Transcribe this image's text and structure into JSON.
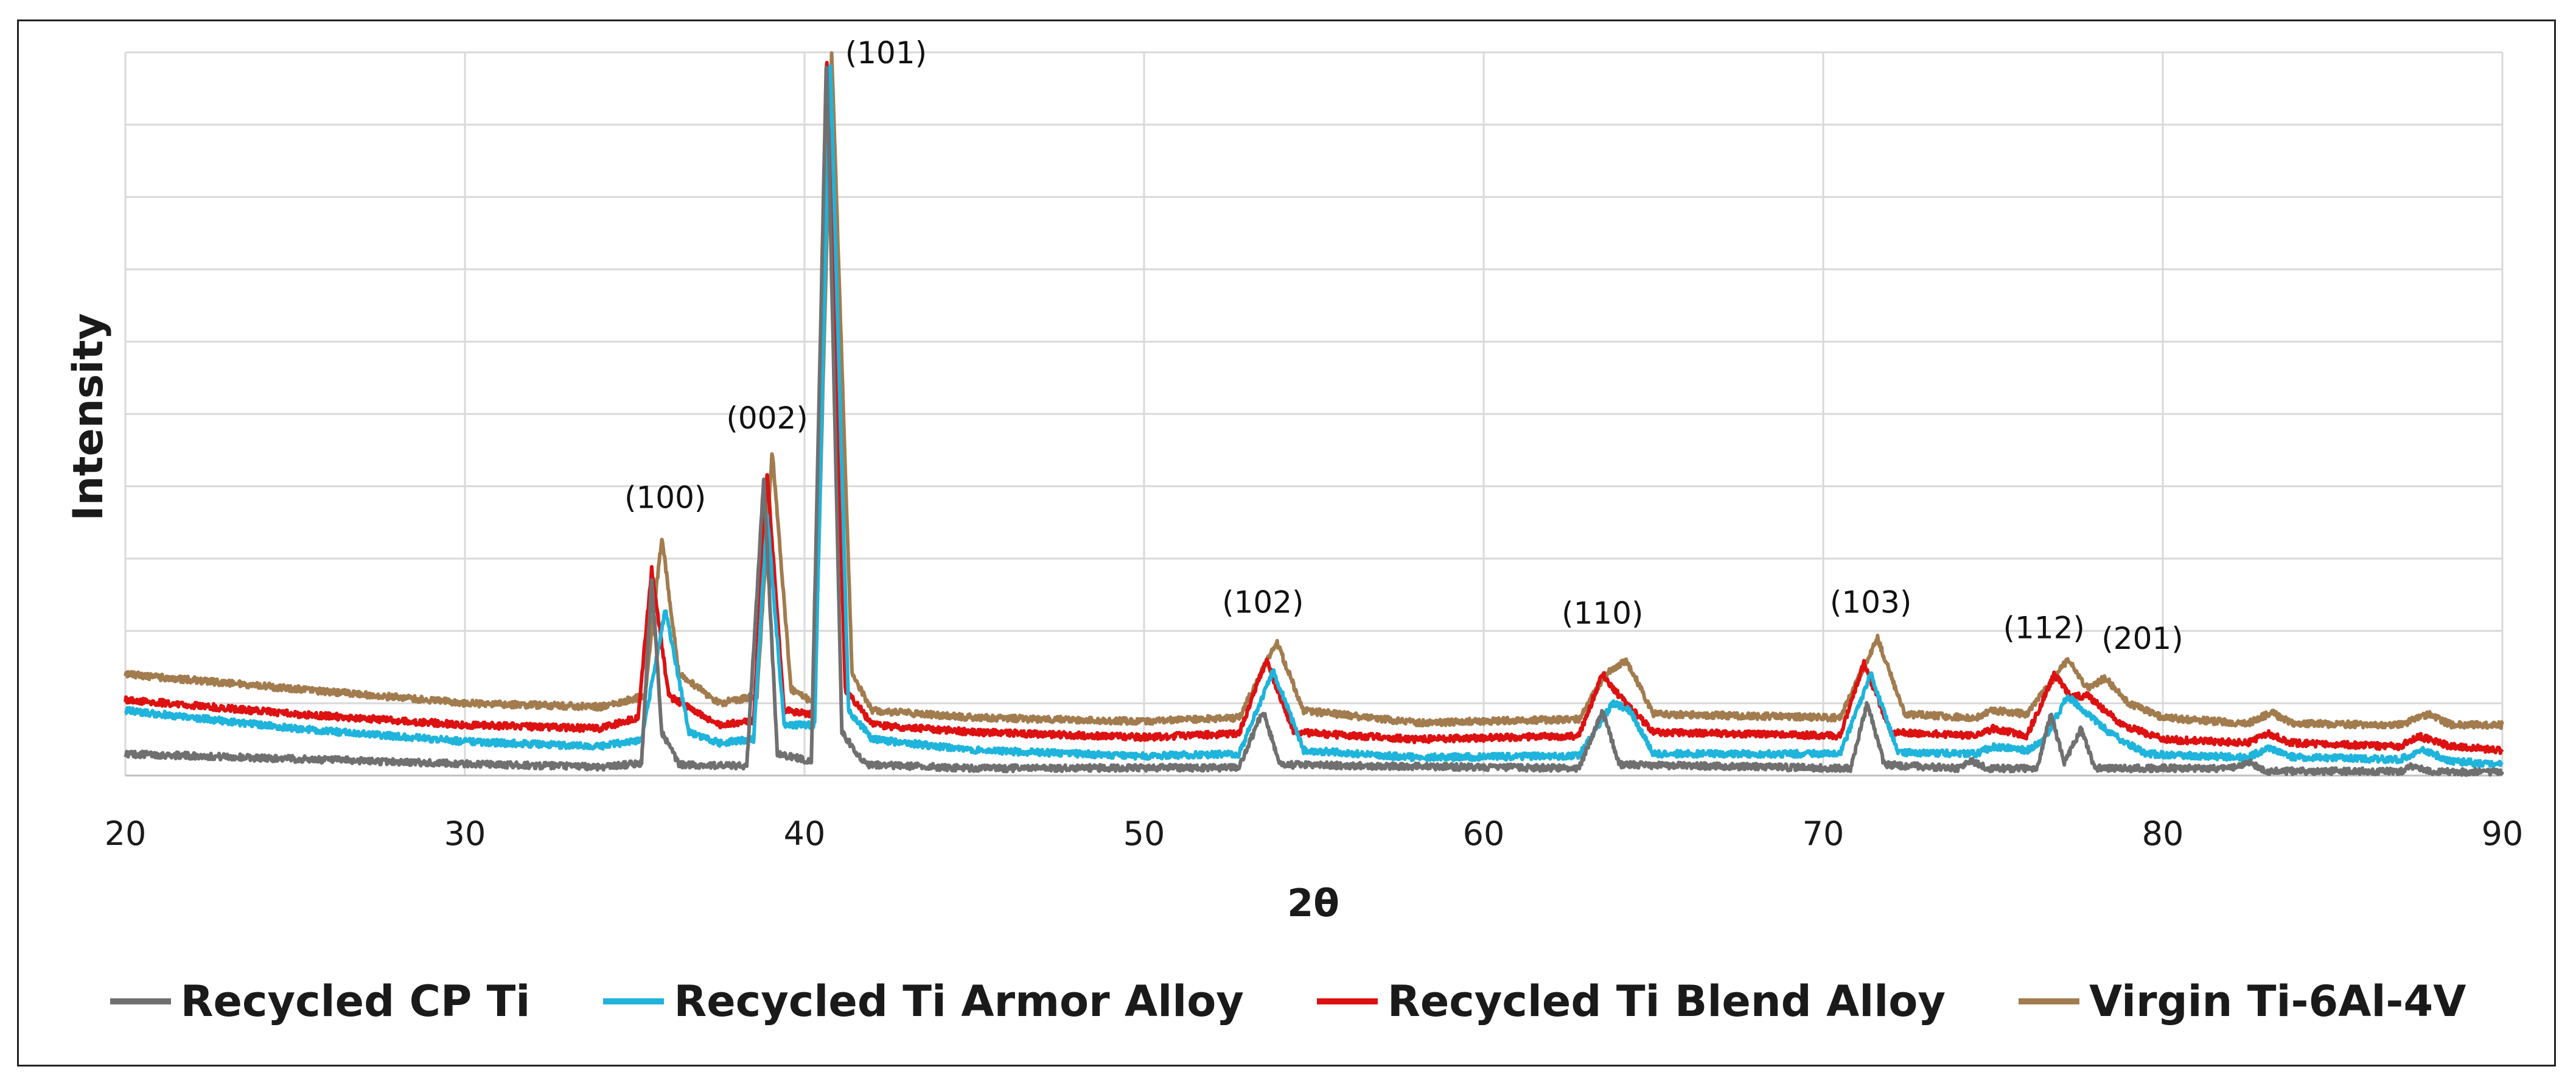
{
  "chart_data": {
    "type": "line",
    "title": "",
    "xlabel": "2θ",
    "ylabel": "Intensity",
    "xlim": [
      20,
      90
    ],
    "ylim": [
      0,
      100
    ],
    "x_ticks": [
      20,
      30,
      40,
      50,
      60,
      70,
      80,
      90
    ],
    "y_gridlines": 10,
    "grid": true,
    "legend_position": "bottom",
    "series": [
      {
        "name": "Recycled CP Ti",
        "color": "#707070",
        "points": [
          [
            20,
            3.0
          ],
          [
            25,
            2.3
          ],
          [
            30,
            1.6
          ],
          [
            34,
            1.2
          ],
          [
            35.2,
            1.7
          ],
          [
            35.5,
            27
          ],
          [
            35.8,
            6
          ],
          [
            36.3,
            1.5
          ],
          [
            38.3,
            1.3
          ],
          [
            38.8,
            41
          ],
          [
            39.2,
            3
          ],
          [
            40.2,
            2
          ],
          [
            40.65,
            100
          ],
          [
            41.1,
            6
          ],
          [
            41.8,
            1.5
          ],
          [
            45,
            1.0
          ],
          [
            52.8,
            1.1
          ],
          [
            53.5,
            9
          ],
          [
            54.0,
            1.5
          ],
          [
            62.8,
            1.0
          ],
          [
            63.5,
            9
          ],
          [
            64.0,
            1.5
          ],
          [
            70.8,
            1.0
          ],
          [
            71.3,
            10
          ],
          [
            71.8,
            1.5
          ],
          [
            74,
            1.0
          ],
          [
            74.4,
            2.0
          ],
          [
            74.8,
            1.0
          ],
          [
            76.3,
            1.0
          ],
          [
            76.7,
            8.5
          ],
          [
            77.1,
            1.8
          ],
          [
            77.6,
            6.5
          ],
          [
            78.0,
            1.0
          ],
          [
            82,
            1.0
          ],
          [
            82.6,
            1.8
          ],
          [
            83,
            0.6
          ],
          [
            87,
            0.6
          ],
          [
            87.4,
            1.4
          ],
          [
            88,
            0.5
          ],
          [
            90,
            0.5
          ]
        ]
      },
      {
        "name": "Recycled Ti Armor Alloy",
        "color": "#1eb4dc",
        "points": [
          [
            20,
            9
          ],
          [
            25,
            6.5
          ],
          [
            30,
            4.7
          ],
          [
            34,
            4.0
          ],
          [
            35.2,
            5.0
          ],
          [
            35.9,
            23
          ],
          [
            36.6,
            6
          ],
          [
            37.5,
            4.5
          ],
          [
            38.5,
            5
          ],
          [
            38.9,
            36
          ],
          [
            39.4,
            7
          ],
          [
            40.3,
            7
          ],
          [
            40.75,
            100
          ],
          [
            41.3,
            9
          ],
          [
            42,
            5
          ],
          [
            45,
            3.5
          ],
          [
            50,
            2.7
          ],
          [
            52.8,
            3.0
          ],
          [
            53.8,
            14.5
          ],
          [
            54.7,
            3.5
          ],
          [
            58,
            2.5
          ],
          [
            62.8,
            2.7
          ],
          [
            63.8,
            10
          ],
          [
            64.3,
            9
          ],
          [
            65.0,
            3
          ],
          [
            70.5,
            3
          ],
          [
            71.4,
            14
          ],
          [
            72.2,
            3.2
          ],
          [
            74.5,
            3.0
          ],
          [
            75,
            4
          ],
          [
            76,
            3.5
          ],
          [
            76.5,
            5
          ],
          [
            77.2,
            11
          ],
          [
            78.4,
            6
          ],
          [
            79.5,
            3
          ],
          [
            82.5,
            2.5
          ],
          [
            83.1,
            3.8
          ],
          [
            83.8,
            2.6
          ],
          [
            87,
            2.2
          ],
          [
            87.6,
            3.6
          ],
          [
            88.5,
            2.0
          ],
          [
            90,
            1.5
          ]
        ]
      },
      {
        "name": "Recycled Ti Blend Alloy",
        "color": "#dd1111",
        "points": [
          [
            20,
            10.5
          ],
          [
            25,
            8.5
          ],
          [
            30,
            7
          ],
          [
            34,
            6.5
          ],
          [
            35.1,
            8
          ],
          [
            35.5,
            28.5
          ],
          [
            36.0,
            11
          ],
          [
            37.5,
            7
          ],
          [
            38.5,
            7.5
          ],
          [
            38.9,
            42
          ],
          [
            39.4,
            9
          ],
          [
            40.3,
            8.5
          ],
          [
            40.65,
            100
          ],
          [
            41.2,
            12
          ],
          [
            42,
            7
          ],
          [
            45,
            6
          ],
          [
            50,
            5.3
          ],
          [
            52.8,
            5.8
          ],
          [
            53.6,
            16
          ],
          [
            54.4,
            6
          ],
          [
            58,
            5.0
          ],
          [
            62.8,
            5.5
          ],
          [
            63.5,
            14
          ],
          [
            64.0,
            11
          ],
          [
            65.0,
            6
          ],
          [
            70.5,
            5.5
          ],
          [
            71.2,
            15.5
          ],
          [
            72.0,
            6
          ],
          [
            74.5,
            5.5
          ],
          [
            75,
            6.5
          ],
          [
            76,
            5.5
          ],
          [
            76.8,
            14
          ],
          [
            77.3,
            11
          ],
          [
            77.8,
            11
          ],
          [
            78.8,
            7
          ],
          [
            80,
            5
          ],
          [
            82.5,
            4.5
          ],
          [
            83.1,
            5.8
          ],
          [
            83.8,
            4.5
          ],
          [
            87,
            4.0
          ],
          [
            87.5,
            5.5
          ],
          [
            88.5,
            4.0
          ],
          [
            90,
            3.5
          ]
        ]
      },
      {
        "name": "Virgin Ti-6Al-4V",
        "color": "#a27c4e",
        "points": [
          [
            20,
            14
          ],
          [
            25,
            12
          ],
          [
            30,
            10
          ],
          [
            34,
            9.5
          ],
          [
            35.3,
            11
          ],
          [
            35.8,
            33
          ],
          [
            36.3,
            14
          ],
          [
            37.5,
            10
          ],
          [
            38.6,
            11
          ],
          [
            39.05,
            45
          ],
          [
            39.6,
            12
          ],
          [
            40.3,
            10
          ],
          [
            40.8,
            100
          ],
          [
            41.4,
            14
          ],
          [
            42,
            9
          ],
          [
            45,
            8
          ],
          [
            50,
            7.5
          ],
          [
            52.8,
            8
          ],
          [
            53.9,
            18.5
          ],
          [
            54.7,
            9
          ],
          [
            58,
            7.3
          ],
          [
            62.8,
            7.8
          ],
          [
            63.6,
            14
          ],
          [
            64.2,
            16
          ],
          [
            65.0,
            8.5
          ],
          [
            70.5,
            8
          ],
          [
            71.6,
            19
          ],
          [
            72.4,
            8.5
          ],
          [
            74.5,
            8
          ],
          [
            75,
            9
          ],
          [
            76,
            8.5
          ],
          [
            77.2,
            16
          ],
          [
            77.8,
            12
          ],
          [
            78.3,
            13.5
          ],
          [
            79,
            10
          ],
          [
            80,
            8
          ],
          [
            82.5,
            7.2
          ],
          [
            83.2,
            8.7
          ],
          [
            83.8,
            7.2
          ],
          [
            87,
            7.0
          ],
          [
            87.8,
            8.5
          ],
          [
            88.5,
            7.0
          ],
          [
            90,
            7.0
          ]
        ]
      }
    ],
    "annotations": [
      {
        "text": "(100)",
        "x": 35.9,
        "y": 37
      },
      {
        "text": "(002)",
        "x": 38.9,
        "y": 48
      },
      {
        "text": "(101)",
        "x": 42.4,
        "y": 98.5
      },
      {
        "text": "(102)",
        "x": 53.5,
        "y": 22.5
      },
      {
        "text": "(110)",
        "x": 63.5,
        "y": 21
      },
      {
        "text": "(103)",
        "x": 71.4,
        "y": 22.5
      },
      {
        "text": "(112)",
        "x": 76.5,
        "y": 19
      },
      {
        "text": "(201)",
        "x": 79.4,
        "y": 17.5
      }
    ]
  }
}
